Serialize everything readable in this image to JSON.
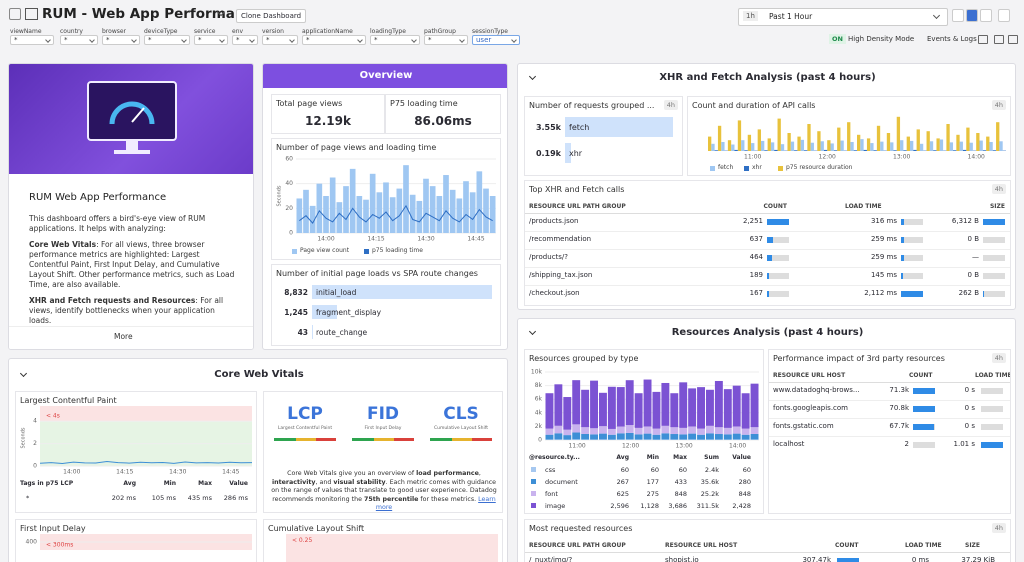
{
  "header": {
    "title": "RUM - Web App Performance",
    "clone_button": "Clone Dashboard",
    "time_short": "1h",
    "time_range": "Past 1 Hour",
    "density_state": "ON",
    "density_label": "High Density Mode",
    "events_logs": "Events & Logs"
  },
  "filters": [
    {
      "name": "viewName",
      "value": "*"
    },
    {
      "name": "country",
      "value": "*"
    },
    {
      "name": "browser",
      "value": "*"
    },
    {
      "name": "deviceType",
      "value": "*"
    },
    {
      "name": "service",
      "value": "*"
    },
    {
      "name": "env",
      "value": "*"
    },
    {
      "name": "version",
      "value": "*"
    },
    {
      "name": "applicationName",
      "value": "*"
    },
    {
      "name": "loadingType",
      "value": "*"
    },
    {
      "name": "pathGroup",
      "value": "*"
    },
    {
      "name": "sessionType",
      "value": "user"
    }
  ],
  "intro": {
    "title": "RUM Web App Performance",
    "paragraph": "This dashboard offers a bird's-eye view of RUM applications. It helps with analyzing:",
    "cwv_label": "Core Web Vitals",
    "cwv_text": ": For all views, three browser performance metrics are highlighted: Largest Contentful Paint, First Input Delay, and Cumulative Layout Shift. Other performance metrics, such as Load Time, are also available.",
    "xhr_label": "XHR and Fetch requests and Resources",
    "xhr_text": ": For all views, identify bottlenecks when your application loads.",
    "more": "More"
  },
  "overview": {
    "title": "Overview",
    "total_label": "Total page views",
    "total_value": "12.19k",
    "p75_label": "P75 loading time",
    "p75_value": "86.06ms",
    "chart": {
      "title": "Number of page views and loading time",
      "ylabel": "Seconds",
      "ylim": [
        0,
        60
      ],
      "yticks": [
        0,
        20,
        40,
        60
      ],
      "xticks": [
        "14:00",
        "14:15",
        "14:30",
        "14:45"
      ],
      "series": [
        {
          "name": "Page view count",
          "color": "#9fc7f2",
          "values": [
            28,
            35,
            22,
            40,
            30,
            45,
            25,
            38,
            52,
            30,
            27,
            48,
            33,
            41,
            29,
            36,
            55,
            31,
            26,
            44,
            38,
            30,
            47,
            35,
            28,
            42,
            33,
            50,
            36,
            30
          ]
        },
        {
          "name": "p75 loading time",
          "color": "#2f6fc4",
          "values": [
            10,
            14,
            8,
            18,
            12,
            9,
            16,
            11,
            20,
            13,
            9,
            15,
            12,
            17,
            10,
            14,
            22,
            11,
            9,
            16,
            13,
            10,
            18,
            12,
            9,
            15,
            11,
            19,
            13,
            10
          ]
        }
      ]
    },
    "spa": {
      "title": "Number of initial page loads vs SPA route changes",
      "categories": [
        "initial_load",
        "fragment_display",
        "route_change"
      ],
      "values": [
        8832,
        1245,
        43
      ],
      "value_labels": [
        "8,832",
        "1,245",
        "43"
      ],
      "color": "#cfe2fb"
    }
  },
  "xhr": {
    "title": "XHR and Fetch Analysis (past 4 hours)",
    "requests": {
      "title": "Number of requests grouped ...",
      "badge": "4h",
      "categories": [
        "fetch",
        "xhr"
      ],
      "values": [
        3550,
        190
      ],
      "value_labels": [
        "3.55k",
        "0.19k"
      ],
      "color": "#cfe2fb"
    },
    "api": {
      "title": "Count and duration of API calls",
      "badge": "4h",
      "ylim": [
        0,
        100
      ],
      "xticks": [
        "11:00",
        "12:00",
        "13:00",
        "14:00"
      ],
      "series": [
        {
          "name": "fetch",
          "color": "#9fc7f2",
          "values": [
            20,
            25,
            18,
            30,
            22,
            28,
            24,
            19,
            26,
            31,
            23,
            27,
            21,
            29,
            25,
            33,
            22,
            26,
            24,
            30,
            28,
            20,
            27,
            32,
            24,
            26,
            23,
            29,
            25,
            27
          ]
        },
        {
          "name": "xhr",
          "color": "#2f6fc4",
          "values": [
            2,
            1,
            3,
            2,
            1,
            2,
            3,
            1,
            2,
            2,
            1,
            3,
            2,
            1,
            2,
            3,
            2,
            1,
            2,
            2,
            3,
            1,
            2,
            1,
            2,
            3,
            1,
            2,
            2,
            1
          ]
        },
        {
          "name": "p75 resource duration",
          "color": "#e8c23c",
          "values": [
            40,
            70,
            30,
            85,
            45,
            60,
            35,
            90,
            50,
            40,
            75,
            55,
            30,
            65,
            80,
            45,
            35,
            70,
            50,
            95,
            40,
            60,
            55,
            35,
            75,
            45,
            65,
            50,
            40,
            80
          ]
        }
      ]
    },
    "top": {
      "title": "Top XHR and Fetch calls",
      "badge": "4h",
      "headers": [
        "RESOURCE URL PATH GROUP",
        "COUNT",
        "LOAD TIME",
        "SIZE"
      ],
      "paths": [
        "/products.json",
        "/recommendation",
        "/products/?",
        "/shipping_tax.json",
        "/checkout.json"
      ],
      "counts": [
        2251,
        637,
        464,
        189,
        167
      ],
      "count_labels": [
        "2,251",
        "637",
        "464",
        "189",
        "167"
      ],
      "load_times": [
        316,
        259,
        259,
        145,
        2112
      ],
      "load_labels": [
        "316 ms",
        "259 ms",
        "259 ms",
        "145 ms",
        "2,112 ms"
      ],
      "sizes": [
        6312,
        0,
        null,
        0,
        262
      ],
      "size_labels": [
        "6,312 B",
        "0 B",
        "—",
        "0 B",
        "262 B"
      ]
    }
  },
  "resources": {
    "title": "Resources Analysis (past 4 hours)",
    "bytype": {
      "title": "Resources grouped by type",
      "ylim": [
        0,
        10000
      ],
      "yticks": [
        0,
        {
          "value": 2000,
          "label": "2k"
        },
        {
          "value": 4000,
          "label": "4k"
        },
        {
          "value": 6000,
          "label": "6k"
        },
        {
          "value": 8000,
          "label": "8k"
        },
        {
          "value": 10000,
          "label": "10k"
        }
      ],
      "xticks": [
        "11:00",
        "12:00",
        "13:00",
        "14:00"
      ],
      "series": [
        {
          "name": "css",
          "color": "#a6c8f0",
          "values": [
            80,
            90,
            70,
            100,
            85,
            80,
            90,
            75,
            85,
            95,
            80,
            90,
            75,
            85,
            80,
            80,
            90,
            75,
            85,
            80,
            80,
            90,
            75,
            85
          ]
        },
        {
          "name": "document",
          "color": "#3d8fd6",
          "values": [
            700,
            900,
            650,
            1000,
            800,
            750,
            850,
            700,
            900,
            950,
            750,
            850,
            700,
            900,
            800,
            750,
            850,
            700,
            900,
            800,
            750,
            850,
            700,
            800
          ]
        },
        {
          "name": "font",
          "color": "#c9b3ee",
          "values": [
            900,
            1100,
            800,
            1200,
            1000,
            900,
            1100,
            850,
            1000,
            1150,
            950,
            1050,
            900,
            1100,
            1000,
            950,
            1050,
            900,
            1100,
            1000,
            950,
            1050,
            900,
            1000
          ]
        },
        {
          "name": "image",
          "color": "#7b52d3",
          "values": [
            5200,
            6100,
            4800,
            6500,
            5500,
            7000,
            4900,
            6200,
            5800,
            6600,
            5100,
            6900,
            5400,
            6300,
            5000,
            6700,
            5600,
            6100,
            5300,
            6800,
            5700,
            6000,
            5200,
            6400
          ]
        }
      ],
      "table_headers": [
        "@resource.ty...",
        "Avg",
        "Min",
        "Max",
        "Sum",
        "Value"
      ],
      "table_rows": [
        [
          "60",
          "60",
          "60",
          "2.4k",
          "60"
        ],
        [
          "267",
          "177",
          "433",
          "35.6k",
          "280"
        ],
        [
          "625",
          "275",
          "848",
          "25.2k",
          "848"
        ],
        [
          "2,596",
          "1,128",
          "3,686",
          "311.5k",
          "2,428"
        ]
      ]
    },
    "third": {
      "title": "Performance impact of 3rd party resources",
      "badge": "4h",
      "headers": [
        "RESOURCE URL HOST",
        "COUNT",
        "LOAD TIME"
      ],
      "hosts": [
        "www.datadoghq-brows...",
        "fonts.googleapis.com",
        "fonts.gstatic.com",
        "localhost"
      ],
      "counts": [
        71300,
        70800,
        67700,
        2
      ],
      "count_labels": [
        "71.3k",
        "70.8k",
        "67.7k",
        "2"
      ],
      "load_times": [
        0,
        0,
        0,
        1.01
      ],
      "load_labels": [
        "0 s",
        "0 s",
        "0 s",
        "1.01 s"
      ]
    },
    "most": {
      "title": "Most requested resources",
      "badge": "4h",
      "headers": [
        "RESOURCE URL PATH GROUP",
        "RESOURCE URL HOST",
        "COUNT",
        "LOAD TIME",
        "SIZE"
      ],
      "row": [
        "/_nuxt/img/?",
        "shopist.io"
      ],
      "count": 307470,
      "count_label": "307.47k",
      "load_label": "0 ms",
      "size_label": "37.29 KiB"
    }
  },
  "cwv": {
    "title": "Core Web Vitals",
    "lcp": {
      "title": "Largest Contentful Paint",
      "ylabel": "Seconds",
      "ylim": [
        0,
        5
      ],
      "yticks": [
        0,
        2,
        4
      ],
      "threshold": 4,
      "threshold_label": "< 4s",
      "xticks": [
        "14:00",
        "14:15",
        "14:30",
        "14:45"
      ],
      "values": [
        0.25,
        0.3,
        0.22,
        0.35,
        0.28,
        0.27,
        0.4,
        0.3,
        0.26,
        0.33,
        0.29,
        0.31,
        0.24,
        0.36,
        0.28,
        0.3,
        0.27,
        0.34,
        0.29,
        0.3
      ],
      "color": "#3d8fd6",
      "table_headers": [
        "Tags in p75 LCP",
        "Avg",
        "Min",
        "Max",
        "Value"
      ],
      "table_row": [
        "*",
        "202 ms",
        "105 ms",
        "435 ms",
        "286 ms"
      ]
    },
    "cards": [
      {
        "abbr": "LCP",
        "name": "Largest Contentful Paint"
      },
      {
        "abbr": "FID",
        "name": "First Input Delay"
      },
      {
        "abbr": "CLS",
        "name": "Cumulative Layout Shift"
      }
    ],
    "text_parts": [
      "Core Web Vitals give you an overview of ",
      "load performance",
      ", ",
      "interactivity",
      ", and ",
      "visual stability",
      ". Each metric comes with guidance on the range of values that translate to good user experience. Datadog recommends monitoring the ",
      "75th percentile",
      " for these metrics. "
    ],
    "learn_more": "Learn more",
    "fid": {
      "title": "First Input Delay",
      "ylim": [
        0,
        450
      ],
      "yticks": [
        400
      ],
      "threshold": 300,
      "threshold_label": "< 300ms"
    },
    "cls": {
      "title": "Cumulative Layout Shift",
      "threshold_label": "< 0.25"
    }
  }
}
